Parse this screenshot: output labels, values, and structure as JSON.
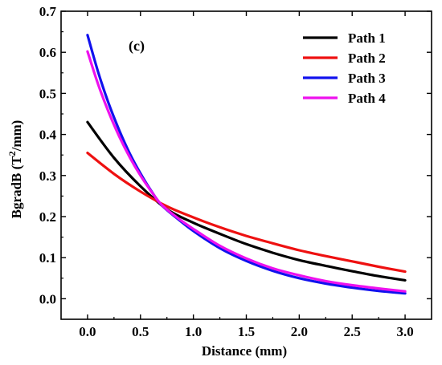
{
  "chart_data": {
    "type": "line",
    "panel_label": "(c)",
    "xlabel": "Distance (mm)",
    "ylabel": "BgradB (T",
    "ylabel_sup": "2",
    "ylabel_tail": "/mm)",
    "xlim": [
      -0.25,
      3.25
    ],
    "ylim": [
      -0.05,
      0.7
    ],
    "x_ticks": [
      0.0,
      0.5,
      1.0,
      1.5,
      2.0,
      2.5,
      3.0
    ],
    "x_tick_labels": [
      "0.0",
      "0.5",
      "1.0",
      "1.5",
      "2.0",
      "2.5",
      "3.0"
    ],
    "y_ticks": [
      0.0,
      0.1,
      0.2,
      0.3,
      0.4,
      0.5,
      0.6,
      0.7
    ],
    "y_tick_labels": [
      "0.0",
      "0.1",
      "0.2",
      "0.3",
      "0.4",
      "0.5",
      "0.6",
      "0.7"
    ],
    "grid": false,
    "legend_position": "top-right",
    "series": [
      {
        "name": "Path 1",
        "color": "#000000",
        "x": [
          0.0,
          0.25,
          0.5,
          0.75,
          1.0,
          1.25,
          1.5,
          1.75,
          2.0,
          2.25,
          2.5,
          2.75,
          3.0
        ],
        "values": [
          0.43,
          0.343,
          0.274,
          0.218,
          0.185,
          0.158,
          0.133,
          0.112,
          0.094,
          0.08,
          0.067,
          0.055,
          0.045
        ]
      },
      {
        "name": "Path 2",
        "color": "#ee1111",
        "x": [
          0.0,
          0.25,
          0.5,
          0.75,
          1.0,
          1.25,
          1.5,
          1.75,
          2.0,
          2.25,
          2.5,
          2.75,
          3.0
        ],
        "values": [
          0.355,
          0.304,
          0.261,
          0.225,
          0.198,
          0.174,
          0.153,
          0.135,
          0.118,
          0.104,
          0.091,
          0.078,
          0.066
        ]
      },
      {
        "name": "Path 3",
        "color": "#1111ee",
        "x": [
          0.0,
          0.1,
          0.2,
          0.3,
          0.4,
          0.5,
          0.6,
          0.7,
          0.85,
          1.0,
          1.25,
          1.5,
          1.75,
          2.0,
          2.25,
          2.5,
          2.75,
          3.0
        ],
        "values": [
          0.642,
          0.552,
          0.475,
          0.41,
          0.353,
          0.305,
          0.263,
          0.228,
          0.195,
          0.165,
          0.123,
          0.092,
          0.068,
          0.05,
          0.037,
          0.027,
          0.019,
          0.013
        ]
      },
      {
        "name": "Path 4",
        "color": "#ee11ee",
        "x": [
          0.0,
          0.1,
          0.2,
          0.3,
          0.4,
          0.5,
          0.6,
          0.7,
          0.85,
          1.0,
          1.25,
          1.5,
          1.75,
          2.0,
          2.25,
          2.5,
          2.75,
          3.0
        ],
        "values": [
          0.602,
          0.522,
          0.454,
          0.395,
          0.344,
          0.3,
          0.262,
          0.229,
          0.197,
          0.17,
          0.129,
          0.098,
          0.074,
          0.057,
          0.043,
          0.033,
          0.025,
          0.018
        ]
      }
    ]
  }
}
